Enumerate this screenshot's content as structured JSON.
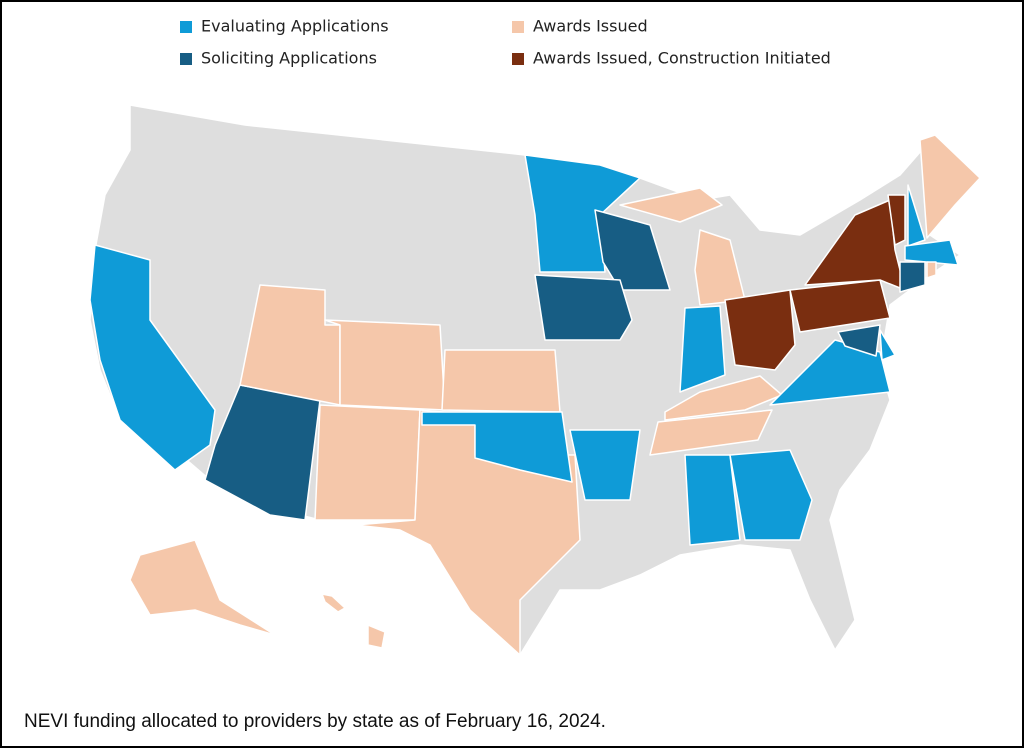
{
  "legend": [
    {
      "label": "Evaluating Applications",
      "color": "#0f9bd7"
    },
    {
      "label": "Soliciting Applications",
      "color": "#175d84"
    },
    {
      "label": "Awards Issued",
      "color": "#f5c7aa"
    },
    {
      "label": "Awards Issued, Construction Initiated",
      "color": "#7a2e10"
    }
  ],
  "base_color": "#dedede",
  "caption": "NEVI funding allocated to providers by state as of February 16, 2024."
}
